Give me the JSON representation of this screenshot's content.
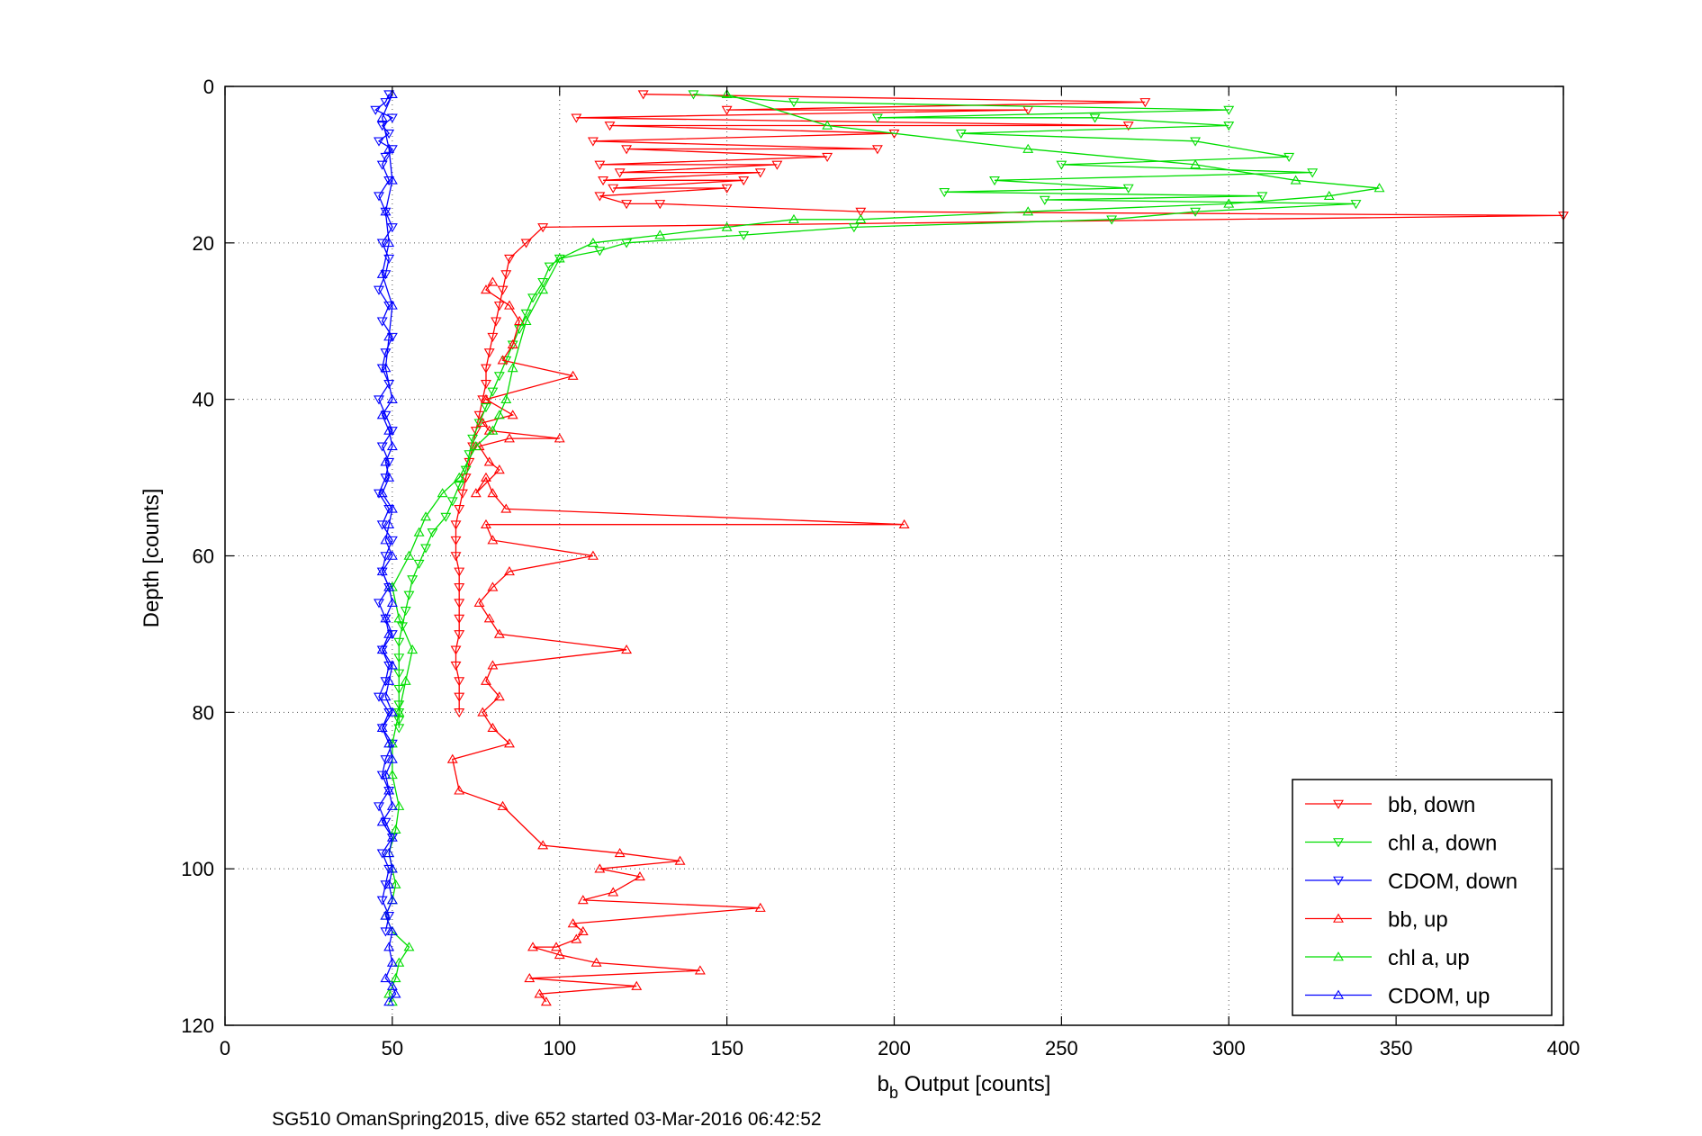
{
  "chart_data": {
    "type": "line",
    "xlabel_main": "b",
    "xlabel_sub": "b",
    "xlabel_rest": " Output [counts]",
    "ylabel": "Depth [counts]",
    "footer": "SG510 OmanSpring2015, dive 652 started 03-Mar-2016 06:42:52",
    "xlim": [
      0,
      400
    ],
    "ylim": [
      0,
      120
    ],
    "y_reversed": true,
    "grid": true,
    "xticks": [
      0,
      50,
      100,
      150,
      200,
      250,
      300,
      350,
      400
    ],
    "yticks": [
      0,
      20,
      40,
      60,
      80,
      100,
      120
    ],
    "legend_position": "bottom-right",
    "series": [
      {
        "name": "bb, down",
        "color": "#ff0000",
        "marker": "triangle-down",
        "line": true,
        "x": [
          125,
          275,
          150,
          240,
          105,
          270,
          115,
          200,
          110,
          195,
          120,
          180,
          112,
          165,
          118,
          160,
          113,
          155,
          116,
          150,
          112,
          120,
          130,
          190,
          400,
          95,
          90,
          85,
          84,
          83,
          82,
          81,
          80,
          79,
          78,
          78,
          77,
          76,
          75,
          74,
          73,
          72,
          71,
          70,
          69,
          69,
          69,
          70,
          70,
          70,
          70,
          70,
          69,
          69,
          70,
          70,
          70
        ],
        "y": [
          1,
          2,
          3,
          3,
          4,
          5,
          5,
          6,
          7,
          8,
          8,
          9,
          10,
          10,
          11,
          11,
          12,
          12,
          13,
          13,
          14,
          15,
          15,
          16,
          16.5,
          18,
          20,
          22,
          24,
          26,
          28,
          30,
          32,
          34,
          36,
          38,
          40,
          42,
          44,
          46,
          48,
          50,
          52,
          54,
          56,
          58,
          60,
          62,
          64,
          66,
          68,
          70,
          72,
          74,
          76,
          78,
          80
        ]
      },
      {
        "name": "chl a, down",
        "color": "#00dd00",
        "marker": "triangle-down",
        "line": true,
        "x": [
          140,
          170,
          300,
          195,
          260,
          300,
          220,
          290,
          318,
          250,
          325,
          230,
          270,
          215,
          310,
          245,
          338,
          290,
          265,
          188,
          155,
          120,
          112,
          100,
          97,
          95,
          92,
          90,
          88,
          86,
          84,
          82,
          80,
          78,
          76,
          74,
          73,
          72,
          70,
          68,
          66,
          62,
          60,
          58,
          56,
          55,
          54,
          53,
          52,
          52,
          52,
          52,
          52,
          52,
          52,
          52
        ],
        "y": [
          1,
          2,
          3,
          4,
          4,
          5,
          6,
          7,
          9,
          10,
          11,
          12,
          13,
          13.5,
          14,
          14.5,
          15,
          16,
          17,
          18,
          19,
          20,
          21,
          22,
          23,
          25,
          27,
          29,
          31,
          33,
          35,
          37,
          39,
          41,
          43,
          45,
          47,
          49,
          51,
          53,
          55,
          57,
          59,
          61,
          63,
          65,
          67,
          69,
          71,
          73,
          75,
          77,
          79,
          80,
          81,
          82
        ]
      },
      {
        "name": "CDOM, down",
        "color": "#0000ff",
        "marker": "triangle-down",
        "line": true,
        "x": [
          49,
          48,
          45,
          50,
          47,
          49,
          46,
          50,
          48,
          47,
          49,
          46,
          48,
          50,
          47,
          49,
          48,
          46,
          49,
          47,
          50,
          48,
          47,
          49,
          46,
          48,
          50,
          47,
          49,
          48,
          46,
          49,
          47,
          50,
          48,
          47,
          49,
          46,
          48,
          50,
          47,
          49,
          48,
          46,
          49,
          47,
          50,
          48,
          47,
          49,
          46,
          48,
          50,
          47,
          49,
          48,
          47,
          49,
          48
        ],
        "y": [
          1,
          2,
          3,
          4,
          5,
          6,
          7,
          8,
          9,
          10,
          12,
          14,
          16,
          18,
          20,
          22,
          24,
          26,
          28,
          30,
          32,
          34,
          36,
          38,
          40,
          42,
          44,
          46,
          48,
          50,
          52,
          54,
          56,
          58,
          60,
          62,
          64,
          66,
          68,
          70,
          72,
          74,
          76,
          78,
          80,
          82,
          84,
          86,
          88,
          90,
          92,
          94,
          96,
          98,
          100,
          102,
          104,
          106,
          108
        ]
      },
      {
        "name": "bb, up",
        "color": "#ff0000",
        "marker": "triangle-up",
        "line": true,
        "x": [
          96,
          94,
          123,
          91,
          142,
          111,
          100,
          92,
          99,
          105,
          107,
          104,
          160,
          107,
          116,
          124,
          112,
          136,
          118,
          95,
          83,
          70,
          68,
          85,
          80,
          77,
          82,
          78,
          80,
          120,
          82,
          79,
          76,
          80,
          85,
          110,
          80,
          78,
          203,
          84,
          80,
          78,
          75,
          82,
          79,
          76,
          85,
          100,
          79,
          77,
          86,
          78,
          104,
          83,
          86,
          88,
          85,
          78,
          80
        ],
        "y": [
          117,
          116,
          115,
          114,
          113,
          112,
          111,
          110,
          110,
          109,
          108,
          107,
          105,
          104,
          103,
          101,
          100,
          99,
          98,
          97,
          92,
          90,
          86,
          84,
          82,
          80,
          78,
          76,
          74,
          72,
          70,
          68,
          66,
          64,
          62,
          60,
          58,
          56,
          56,
          54,
          52,
          50,
          52,
          49,
          48,
          46,
          45,
          45,
          44,
          43,
          42,
          40,
          37,
          35,
          33,
          30,
          28,
          26,
          25
        ]
      },
      {
        "name": "chl a, up",
        "color": "#00dd00",
        "marker": "triangle-up",
        "line": true,
        "x": [
          50,
          49,
          51,
          52,
          55,
          50,
          48,
          50,
          51,
          50,
          49,
          51,
          52,
          50,
          50,
          52,
          54,
          56,
          52,
          50,
          55,
          58,
          60,
          65,
          70,
          75,
          80,
          82,
          84,
          86,
          90,
          95,
          100,
          110,
          130,
          150,
          170,
          190,
          240,
          300,
          330,
          345,
          320,
          290,
          240,
          180,
          150
        ],
        "y": [
          117,
          116,
          114,
          112,
          110,
          108,
          106,
          104,
          102,
          100,
          98,
          95,
          92,
          88,
          84,
          80,
          76,
          72,
          68,
          64,
          60,
          57,
          55,
          52,
          50,
          46,
          44,
          42,
          40,
          36,
          30,
          26,
          22,
          20,
          19,
          18,
          17,
          17,
          16,
          15,
          14,
          13,
          12,
          10,
          8,
          5,
          1
        ]
      },
      {
        "name": "CDOM, up",
        "color": "#0000ff",
        "marker": "triangle-up",
        "line": true,
        "x": [
          49,
          51,
          50,
          48,
          50,
          49,
          50,
          48,
          50,
          49,
          50,
          49,
          50,
          47,
          50,
          49,
          48,
          50,
          49,
          47,
          50,
          48,
          49,
          50,
          47,
          49,
          48,
          50,
          49,
          47,
          50,
          48,
          49,
          50,
          47,
          49,
          48,
          50,
          49,
          47,
          50,
          48,
          49,
          50,
          47,
          49,
          48,
          50,
          49,
          47,
          50
        ],
        "y": [
          117,
          116,
          115,
          114,
          112,
          110,
          108,
          106,
          104,
          102,
          100,
          98,
          96,
          94,
          92,
          90,
          88,
          86,
          84,
          82,
          80,
          78,
          76,
          74,
          72,
          70,
          68,
          66,
          64,
          62,
          60,
          58,
          56,
          54,
          52,
          50,
          48,
          46,
          44,
          42,
          40,
          36,
          32,
          28,
          24,
          20,
          16,
          12,
          8,
          4,
          1
        ]
      }
    ]
  }
}
